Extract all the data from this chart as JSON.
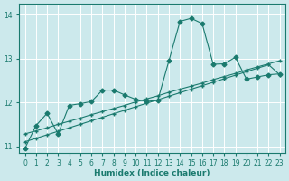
{
  "xlabel": "Humidex (Indice chaleur)",
  "xlim": [
    -0.5,
    23.5
  ],
  "ylim": [
    10.85,
    14.25
  ],
  "yticks": [
    11,
    12,
    13,
    14
  ],
  "xticks": [
    0,
    1,
    2,
    3,
    4,
    5,
    6,
    7,
    8,
    9,
    10,
    11,
    12,
    13,
    14,
    15,
    16,
    17,
    18,
    19,
    20,
    21,
    22,
    23
  ],
  "bg_color": "#cce9ec",
  "line_color": "#1a7a6e",
  "grid_color": "#ffffff",
  "line1_x": [
    0,
    1,
    2,
    3,
    4,
    5,
    6,
    7,
    8,
    9,
    10,
    11,
    12,
    13,
    14,
    15,
    16,
    17,
    18,
    19,
    20,
    21,
    22,
    23
  ],
  "line1_y": [
    10.95,
    11.47,
    11.75,
    11.28,
    11.93,
    11.97,
    12.02,
    12.28,
    12.28,
    12.17,
    12.07,
    12.02,
    12.05,
    12.95,
    13.85,
    13.92,
    13.8,
    12.87,
    12.88,
    13.03,
    12.53,
    12.58,
    12.63,
    12.65
  ],
  "line2_x": [
    0,
    1,
    2,
    3,
    4,
    5,
    6,
    7,
    8,
    9,
    10,
    11,
    12,
    13,
    14,
    15,
    16,
    17,
    18,
    19,
    20,
    21,
    22,
    23
  ],
  "line2_y": [
    11.28,
    11.35,
    11.42,
    11.5,
    11.57,
    11.64,
    11.72,
    11.79,
    11.86,
    11.93,
    12.01,
    12.08,
    12.15,
    12.23,
    12.3,
    12.37,
    12.44,
    12.52,
    12.59,
    12.66,
    12.74,
    12.81,
    12.88,
    12.95
  ],
  "line3_x": [
    0,
    1,
    2,
    3,
    4,
    5,
    6,
    7,
    8,
    9,
    10,
    11,
    12,
    13,
    14,
    15,
    16,
    17,
    18,
    19,
    20,
    21,
    22,
    23
  ],
  "line3_y": [
    11.1,
    11.18,
    11.26,
    11.34,
    11.42,
    11.5,
    11.58,
    11.66,
    11.74,
    11.82,
    11.9,
    11.98,
    12.06,
    12.14,
    12.22,
    12.3,
    12.38,
    12.46,
    12.54,
    12.62,
    12.7,
    12.78,
    12.86,
    12.63
  ],
  "marker_size": 2.5
}
